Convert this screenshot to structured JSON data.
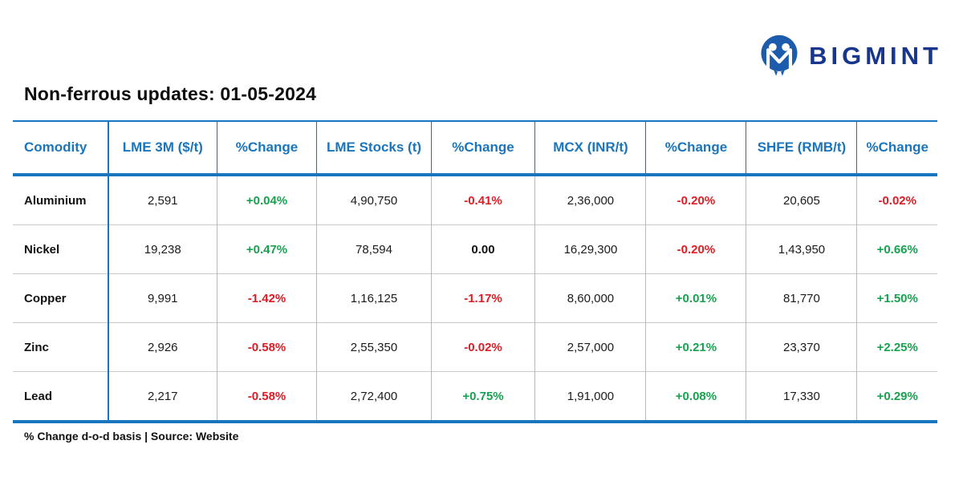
{
  "brand": {
    "name": "BIGMINT"
  },
  "title": "Non-ferrous updates: 01-05-2024",
  "footer_note": "% Change d-o-d basis | Source: Website",
  "colors": {
    "header_blue": "#1b75bc",
    "brand_navy": "#17368c",
    "positive_green": "#17a24f",
    "negative_red": "#e01b24"
  },
  "table": {
    "headers": [
      "Comodity",
      "LME 3M ($/t)",
      "%Change",
      "LME Stocks (t)",
      "%Change",
      "MCX (INR/t)",
      "%Change",
      "SHFE (RMB/t)",
      "%Change"
    ],
    "rows": [
      {
        "cells": [
          {
            "text": "Aluminium",
            "style": "label"
          },
          {
            "text": "2,591",
            "style": "value"
          },
          {
            "text": "+0.04%",
            "style": "pos"
          },
          {
            "text": "4,90,750",
            "style": "value"
          },
          {
            "text": "-0.41%",
            "style": "neg"
          },
          {
            "text": "2,36,000",
            "style": "value"
          },
          {
            "text": "-0.20%",
            "style": "neg"
          },
          {
            "text": "20,605",
            "style": "value"
          },
          {
            "text": "-0.02%",
            "style": "neg"
          }
        ]
      },
      {
        "cells": [
          {
            "text": "Nickel",
            "style": "label"
          },
          {
            "text": "19,238",
            "style": "value"
          },
          {
            "text": "+0.47%",
            "style": "pos"
          },
          {
            "text": "78,594",
            "style": "value"
          },
          {
            "text": "0.00",
            "style": "neutral"
          },
          {
            "text": "16,29,300",
            "style": "value"
          },
          {
            "text": "-0.20%",
            "style": "neg"
          },
          {
            "text": "1,43,950",
            "style": "value"
          },
          {
            "text": "+0.66%",
            "style": "pos"
          }
        ]
      },
      {
        "cells": [
          {
            "text": "Copper",
            "style": "label"
          },
          {
            "text": "9,991",
            "style": "value"
          },
          {
            "text": "-1.42%",
            "style": "neg"
          },
          {
            "text": "1,16,125",
            "style": "value"
          },
          {
            "text": "-1.17%",
            "style": "neg"
          },
          {
            "text": "8,60,000",
            "style": "value"
          },
          {
            "text": "+0.01%",
            "style": "pos"
          },
          {
            "text": "81,770",
            "style": "value"
          },
          {
            "text": "+1.50%",
            "style": "pos"
          }
        ]
      },
      {
        "cells": [
          {
            "text": "Zinc",
            "style": "label"
          },
          {
            "text": "2,926",
            "style": "value"
          },
          {
            "text": "-0.58%",
            "style": "neg"
          },
          {
            "text": "2,55,350",
            "style": "value"
          },
          {
            "text": "-0.02%",
            "style": "neg"
          },
          {
            "text": "2,57,000",
            "style": "value"
          },
          {
            "text": "+0.21%",
            "style": "pos"
          },
          {
            "text": "23,370",
            "style": "value"
          },
          {
            "text": "+2.25%",
            "style": "pos"
          }
        ]
      },
      {
        "cells": [
          {
            "text": "Lead",
            "style": "label"
          },
          {
            "text": "2,217",
            "style": "value"
          },
          {
            "text": "-0.58%",
            "style": "neg"
          },
          {
            "text": "2,72,400",
            "style": "value"
          },
          {
            "text": "+0.75%",
            "style": "pos"
          },
          {
            "text": "1,91,000",
            "style": "value"
          },
          {
            "text": "+0.08%",
            "style": "pos"
          },
          {
            "text": "17,330",
            "style": "value"
          },
          {
            "text": "+0.29%",
            "style": "pos"
          }
        ]
      }
    ]
  },
  "chart_data": {
    "type": "table",
    "title": "Non-ferrous updates: 01-05-2024",
    "columns": [
      "Comodity",
      "LME 3M ($/t)",
      "%Change",
      "LME Stocks (t)",
      "%Change",
      "MCX (INR/t)",
      "%Change",
      "SHFE (RMB/t)",
      "%Change"
    ],
    "rows": [
      [
        "Aluminium",
        2591,
        0.04,
        490750,
        -0.41,
        236000,
        -0.2,
        20605,
        -0.02
      ],
      [
        "Nickel",
        19238,
        0.47,
        78594,
        0.0,
        1629300,
        -0.2,
        143950,
        0.66
      ],
      [
        "Copper",
        9991,
        -1.42,
        116125,
        -1.17,
        860000,
        0.01,
        81770,
        1.5
      ],
      [
        "Zinc",
        2926,
        -0.58,
        255350,
        -0.02,
        257000,
        0.21,
        23370,
        2.25
      ],
      [
        "Lead",
        2217,
        -0.58,
        272400,
        0.75,
        191000,
        0.08,
        17330,
        0.29
      ]
    ],
    "note": "% Change d-o-d basis | Source: Website"
  }
}
